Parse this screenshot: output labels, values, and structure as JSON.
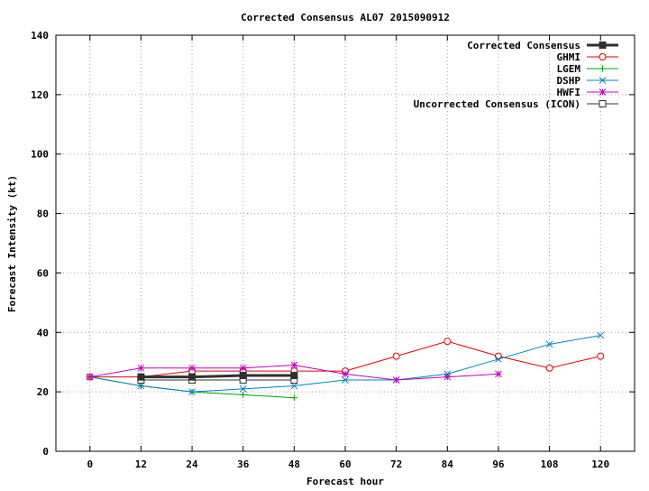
{
  "chart_data": {
    "type": "line",
    "title": "Corrected Consensus  AL07 2015090912",
    "xlabel": "Forecast hour",
    "ylabel": "Forecast Intensity (kt)",
    "xlim": [
      -8,
      128
    ],
    "ylim": [
      0,
      140
    ],
    "x_ticks": [
      0,
      12,
      24,
      36,
      48,
      60,
      72,
      84,
      96,
      108,
      120
    ],
    "y_ticks": [
      0,
      20,
      40,
      60,
      80,
      100,
      120,
      140
    ],
    "grid": true,
    "legend_position": "top-right",
    "series": [
      {
        "name": "Corrected Consensus",
        "color": "#303030",
        "marker": "filled-square",
        "thick": true,
        "points": [
          [
            12,
            25
          ],
          [
            24,
            25
          ],
          [
            36,
            25.5
          ],
          [
            48,
            25.5
          ]
        ]
      },
      {
        "name": "GHMI",
        "color": "#e00000",
        "marker": "circle",
        "points": [
          [
            0,
            25
          ],
          [
            12,
            25
          ],
          [
            24,
            27
          ],
          [
            36,
            27
          ],
          [
            48,
            27
          ],
          [
            60,
            27
          ],
          [
            72,
            32
          ],
          [
            84,
            37
          ],
          [
            96,
            32
          ],
          [
            108,
            28
          ],
          [
            120,
            32
          ]
        ]
      },
      {
        "name": "LGEM",
        "color": "#00a000",
        "marker": "plus",
        "points": [
          [
            0,
            25
          ],
          [
            12,
            22
          ],
          [
            24,
            20
          ],
          [
            36,
            19
          ],
          [
            48,
            18
          ]
        ]
      },
      {
        "name": "DSHP",
        "color": "#0080c0",
        "marker": "x",
        "points": [
          [
            0,
            25
          ],
          [
            12,
            22
          ],
          [
            24,
            20
          ],
          [
            36,
            21
          ],
          [
            48,
            22
          ],
          [
            60,
            24
          ],
          [
            72,
            24
          ],
          [
            84,
            26
          ],
          [
            96,
            31
          ],
          [
            108,
            36
          ],
          [
            120,
            39
          ]
        ]
      },
      {
        "name": "HWFI",
        "color": "#c000c0",
        "marker": "star",
        "points": [
          [
            0,
            25
          ],
          [
            12,
            28
          ],
          [
            24,
            28
          ],
          [
            36,
            28
          ],
          [
            48,
            29
          ],
          [
            60,
            26
          ],
          [
            72,
            24
          ],
          [
            84,
            25
          ],
          [
            96,
            26
          ]
        ]
      },
      {
        "name": "Uncorrected Consensus (ICON)",
        "color": "#303030",
        "marker": "open-square",
        "points": [
          [
            12,
            24
          ],
          [
            24,
            24
          ],
          [
            36,
            24
          ],
          [
            48,
            24
          ]
        ]
      }
    ]
  }
}
